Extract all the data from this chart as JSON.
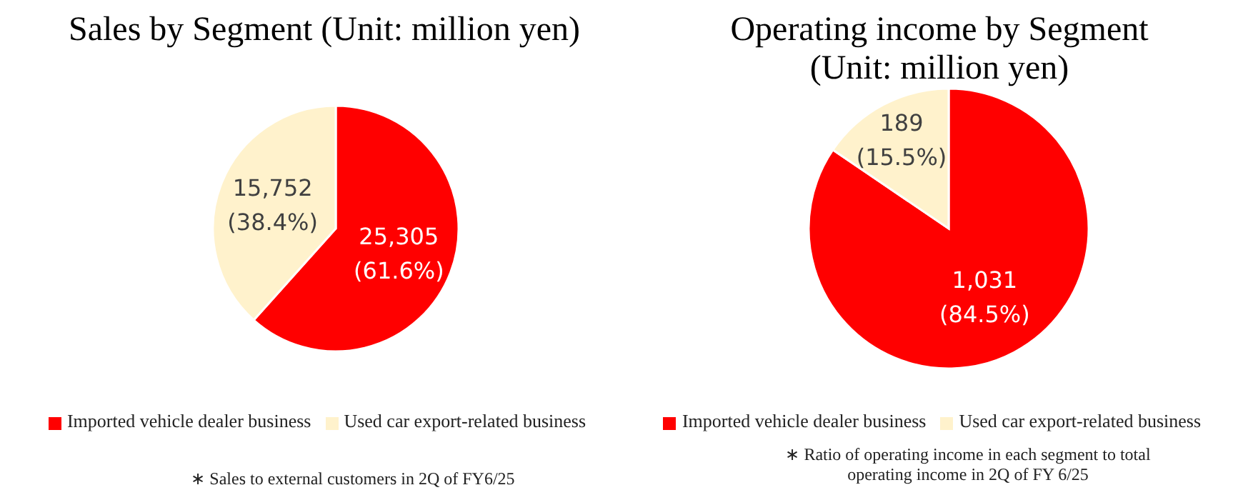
{
  "chart_data": [
    {
      "type": "pie",
      "title": "Sales by Segment (Unit: million yen)",
      "categories": [
        "Imported vehicle dealer business",
        "Used car export-related business"
      ],
      "values": [
        25305,
        15752
      ],
      "colors": [
        "#ff0000",
        "#fff2cc"
      ],
      "value_labels": [
        "25,305 (61.6%)",
        "15,752 (38.4%)"
      ],
      "legend": "bottom",
      "annotations": [
        "∗ Sales to external customers in 2Q of FY6/25"
      ]
    },
    {
      "type": "pie",
      "title": "Operating income by Segment (Unit: million yen)",
      "categories": [
        "Imported vehicle dealer business",
        "Used car export-related business"
      ],
      "values": [
        1031,
        189
      ],
      "colors": [
        "#ff0000",
        "#fff2cc"
      ],
      "value_labels": [
        "1,031 (84.5%)",
        "189 (15.5%)"
      ],
      "legend": "bottom",
      "annotations": [
        "∗ Ratio of operating income in each segment to total operating income in 2Q of FY 6/25"
      ]
    }
  ]
}
